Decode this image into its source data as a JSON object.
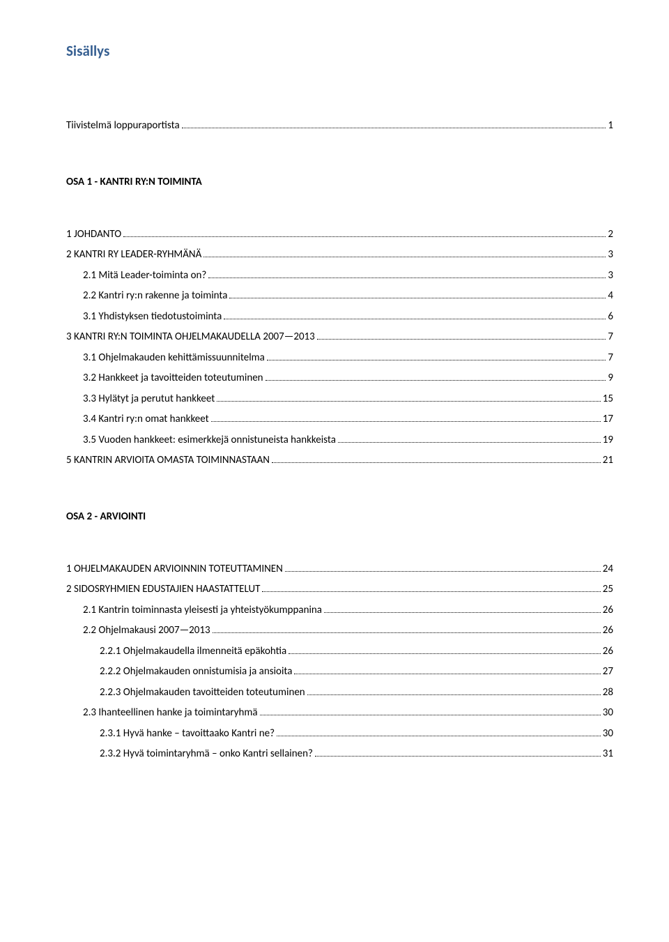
{
  "title": "Sisällys",
  "section1_heading": "OSA 1 - KANTRI RY:N TOIMINTA",
  "section2_heading": "OSA 2 - ARVIOINTI",
  "toc": {
    "item1": {
      "label": "Tiivistelmä loppuraportista",
      "page": "1"
    },
    "item2": {
      "label": "1 JOHDANTO",
      "page": "2"
    },
    "item3": {
      "label": "2 KANTRI RY LEADER-RYHMÄNÄ",
      "page": "3"
    },
    "item4": {
      "label": "2.1 Mitä Leader-toiminta on?",
      "page": "3"
    },
    "item5": {
      "label": "2.2 Kantri ry:n rakenne ja toiminta",
      "page": "4"
    },
    "item6": {
      "label": "3.1 Yhdistyksen tiedotustoiminta",
      "page": "6"
    },
    "item7": {
      "label": "3 KANTRI RY:N TOIMINTA OHJELMAKAUDELLA 2007—2013",
      "page": "7"
    },
    "item8": {
      "label": "3.1 Ohjelmakauden kehittämissuunnitelma",
      "page": "7"
    },
    "item9": {
      "label": "3.2 Hankkeet ja tavoitteiden toteutuminen",
      "page": "9"
    },
    "item10": {
      "label": "3.3 Hylätyt ja perutut hankkeet",
      "page": "15"
    },
    "item11": {
      "label": "3.4 Kantri ry:n omat hankkeet",
      "page": "17"
    },
    "item12": {
      "label": "3.5 Vuoden hankkeet: esimerkkejä onnistuneista hankkeista",
      "page": "19"
    },
    "item13": {
      "label": "5 KANTRIN ARVIOITA OMASTA TOIMINNASTAAN",
      "page": "21"
    },
    "item14": {
      "label": "1 OHJELMAKAUDEN ARVIOINNIN TOTEUTTAMINEN",
      "page": "24"
    },
    "item15": {
      "label": "2 SIDOSRYHMIEN EDUSTAJIEN HAASTATTELUT",
      "page": "25"
    },
    "item16": {
      "label": "2.1 Kantrin toiminnasta yleisesti ja yhteistyökumppanina",
      "page": "26"
    },
    "item17": {
      "label": "2.2 Ohjelmakausi 2007—2013",
      "page": "26"
    },
    "item18": {
      "label": "2.2.1 Ohjelmakaudella ilmenneitä epäkohtia",
      "page": "26"
    },
    "item19": {
      "label": "2.2.2 Ohjelmakauden onnistumisia ja ansioita",
      "page": "27"
    },
    "item20": {
      "label": "2.2.3 Ohjelmakauden tavoitteiden toteutuminen",
      "page": "28"
    },
    "item21": {
      "label": "2.3 Ihanteellinen hanke ja toimintaryhmä",
      "page": "30"
    },
    "item22": {
      "label": "2.3.1 Hyvä hanke – tavoittaako Kantri ne?",
      "page": "30"
    },
    "item23": {
      "label": "2.3.2 Hyvä toimintaryhmä – onko Kantri sellainen?",
      "page": "31"
    }
  },
  "colors": {
    "title_color": "#365f91",
    "text_color": "#000000",
    "background": "#ffffff"
  },
  "typography": {
    "title_fontsize": 21,
    "body_fontsize": 15,
    "heading_fontsize": 15
  }
}
